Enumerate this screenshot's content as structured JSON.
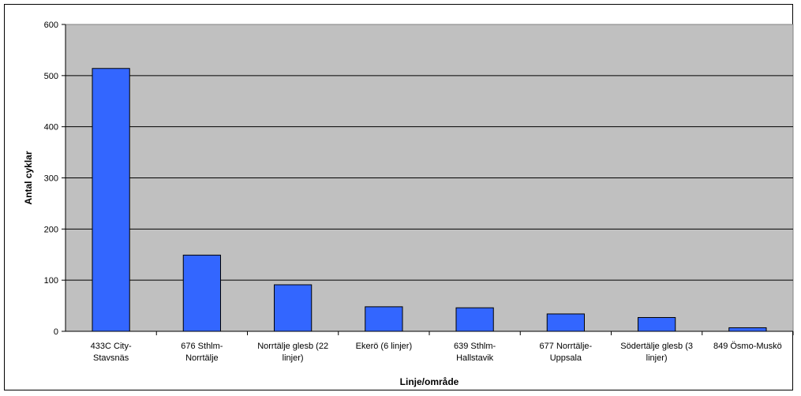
{
  "chart_data": {
    "type": "bar",
    "title": "",
    "xlabel": "Linje/område",
    "ylabel": "Antal cyklar",
    "ylim": [
      0,
      600
    ],
    "yticks": [
      0,
      100,
      200,
      300,
      400,
      500,
      600
    ],
    "grid": true,
    "legend": "none",
    "categories": [
      [
        "433C City-",
        "Stavsnäs"
      ],
      [
        "676 Sthlm-",
        "Norrtälje"
      ],
      [
        "Norrtälje glesb (22",
        "linjer)"
      ],
      [
        "Ekerö (6 linjer)"
      ],
      [
        "639 Sthlm-",
        "Hallstavik"
      ],
      [
        "677 Norrtälje-",
        "Uppsala"
      ],
      [
        "Södertälje glesb (3",
        "linjer)"
      ],
      [
        "849 Ösmo-Muskö"
      ]
    ],
    "values": [
      514,
      149,
      91,
      48,
      46,
      34,
      27,
      7
    ],
    "colors": {
      "bar": "#3366ff",
      "bar_border": "#000000",
      "plot_bg": "#c0c0c0",
      "grid": "#000000"
    }
  }
}
